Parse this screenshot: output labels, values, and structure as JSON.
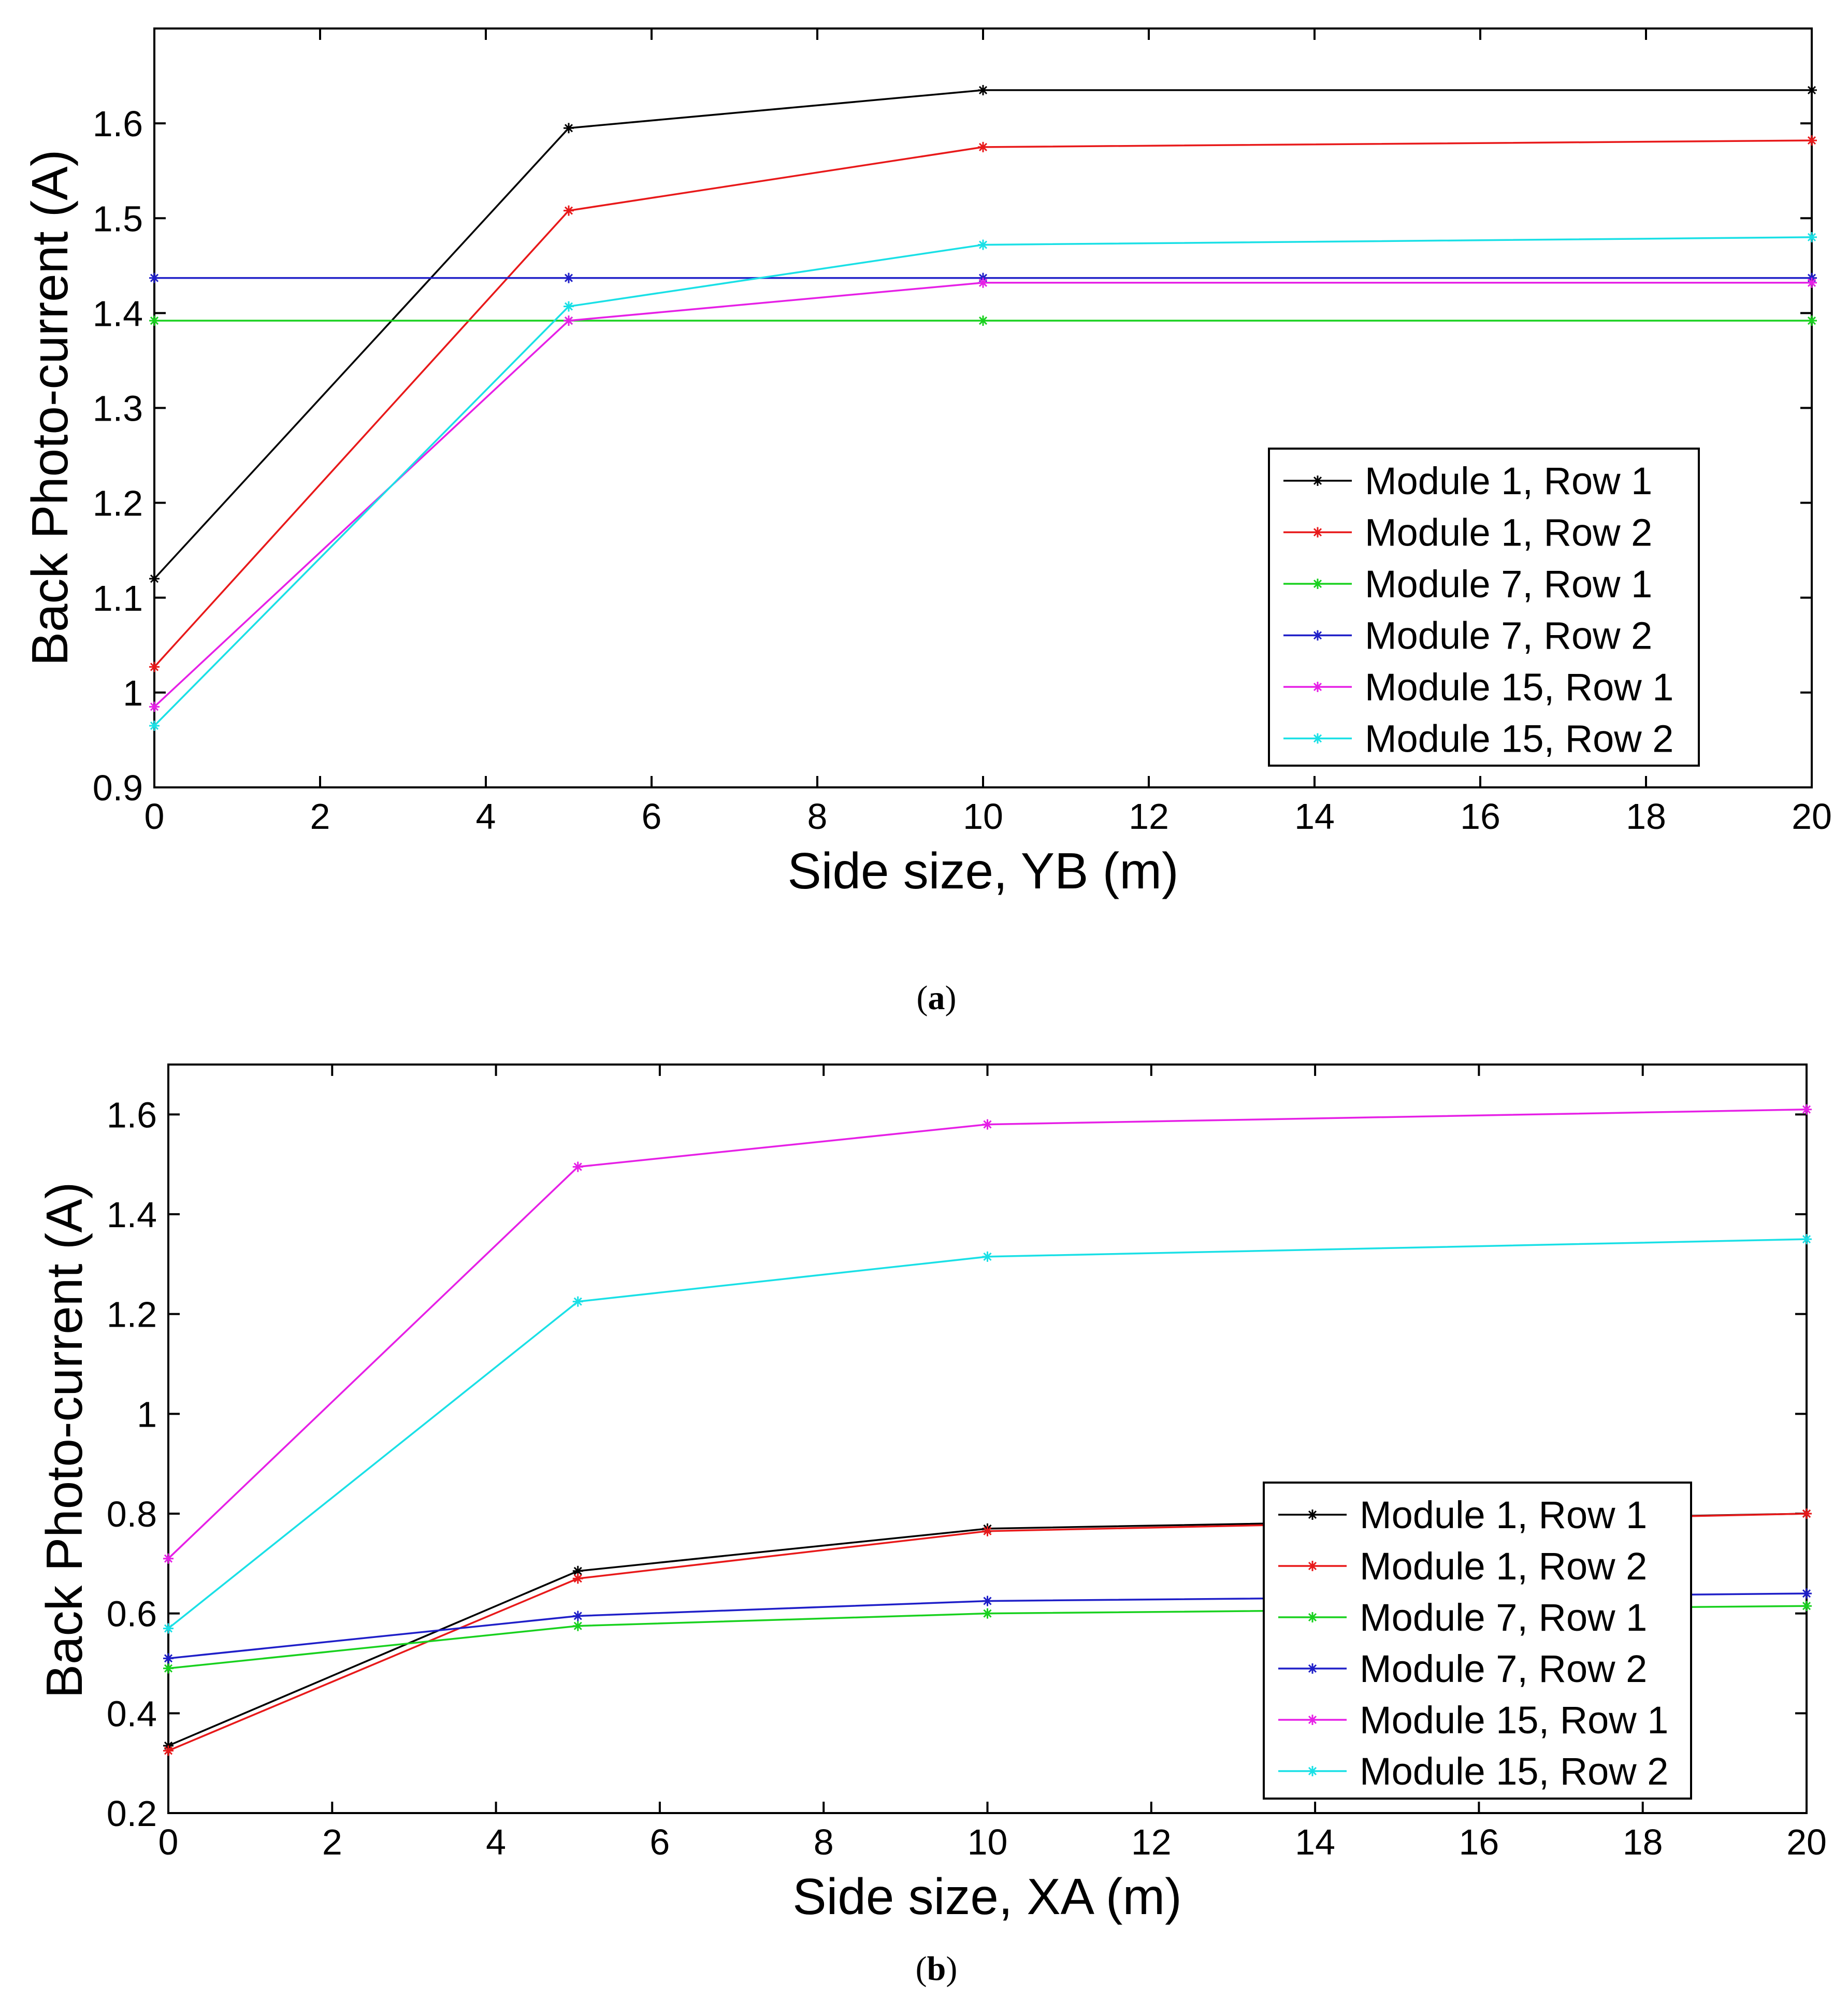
{
  "chart_data": [
    {
      "type": "line",
      "panel": "(a)",
      "panel_letter": "a",
      "xlabel": "Side size, YB (m)",
      "ylabel": "Back Photo-current (A)",
      "xlim": [
        0,
        20
      ],
      "ylim": [
        0.9,
        1.7
      ],
      "xticks": [
        0,
        2,
        4,
        6,
        8,
        10,
        12,
        14,
        16,
        18,
        20
      ],
      "yticks": [
        0.9,
        1,
        1.1,
        1.2,
        1.3,
        1.4,
        1.5,
        1.6
      ],
      "ytick_labels": [
        "0.9",
        "1",
        "1.1",
        "1.2",
        "1.3",
        "1.4",
        "1.5",
        "1.6"
      ],
      "legend_position": "lower-right",
      "x": [
        0,
        5,
        10,
        20
      ],
      "series": [
        {
          "name": "Module 1, Row 1",
          "color": "#000000",
          "values": [
            1.12,
            1.595,
            1.635,
            1.635
          ]
        },
        {
          "name": "Module 1, Row 2",
          "color": "#e8191a",
          "values": [
            1.027,
            1.508,
            1.575,
            1.582
          ]
        },
        {
          "name": "Module 7, Row 1",
          "color": "#19d11f",
          "values": [
            1.392,
            1.392,
            1.392,
            1.392
          ]
        },
        {
          "name": "Module 7, Row 2",
          "color": "#1f1fc8",
          "values": [
            1.437,
            1.437,
            1.437,
            1.437
          ]
        },
        {
          "name": "Module 15, Row 1",
          "color": "#e620e6",
          "values": [
            0.985,
            1.392,
            1.432,
            1.432
          ]
        },
        {
          "name": "Module 15, Row 2",
          "color": "#1ae0e6",
          "values": [
            0.965,
            1.407,
            1.472,
            1.48
          ]
        }
      ]
    },
    {
      "type": "line",
      "panel": "(b)",
      "panel_letter": "b",
      "xlabel": "Side size, XA (m)",
      "ylabel": "Back Photo-current (A)",
      "xlim": [
        0,
        20
      ],
      "ylim": [
        0.2,
        1.7
      ],
      "xticks": [
        0,
        2,
        4,
        6,
        8,
        10,
        12,
        14,
        16,
        18,
        20
      ],
      "yticks": [
        0.2,
        0.4,
        0.6,
        0.8,
        1,
        1.2,
        1.4,
        1.6
      ],
      "ytick_labels": [
        "0.2",
        "0.4",
        "0.6",
        "0.8",
        "1",
        "1.2",
        "1.4",
        "1.6"
      ],
      "legend_position": "lower-right",
      "x": [
        0,
        5,
        10,
        20
      ],
      "series": [
        {
          "name": "Module 1, Row 1",
          "color": "#000000",
          "values": [
            0.335,
            0.685,
            0.77,
            0.8
          ]
        },
        {
          "name": "Module 1, Row 2",
          "color": "#e8191a",
          "values": [
            0.325,
            0.67,
            0.765,
            0.8
          ]
        },
        {
          "name": "Module 7, Row 1",
          "color": "#19d11f",
          "values": [
            0.49,
            0.575,
            0.6,
            0.615
          ]
        },
        {
          "name": "Module 7, Row 2",
          "color": "#1f1fc8",
          "values": [
            0.51,
            0.595,
            0.625,
            0.64
          ]
        },
        {
          "name": "Module 15, Row 1",
          "color": "#e620e6",
          "values": [
            0.71,
            1.495,
            1.58,
            1.61
          ]
        },
        {
          "name": "Module 15, Row 2",
          "color": "#1ae0e6",
          "values": [
            0.57,
            1.225,
            1.315,
            1.35
          ]
        }
      ]
    }
  ]
}
